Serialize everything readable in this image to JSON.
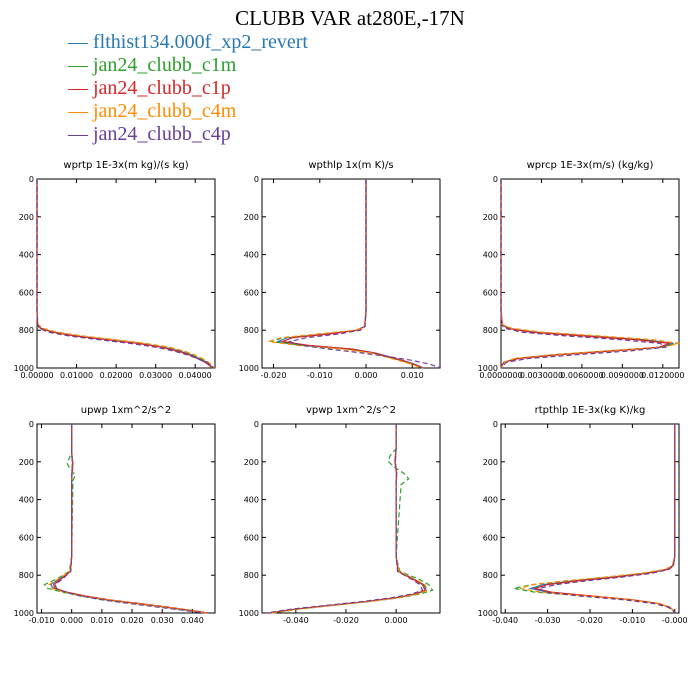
{
  "title": "CLUBB VAR at280E,-17N",
  "legend": [
    {
      "label": "flthist134.000f_xp2_revert",
      "color": "#2878b4"
    },
    {
      "label": "jan24_clubb_c1m",
      "color": "#2ca02c"
    },
    {
      "label": "jan24_clubb_c1p",
      "color": "#d62728"
    },
    {
      "label": "jan24_clubb_c4m",
      "color": "#ff8c00"
    },
    {
      "label": "jan24_clubb_c4p",
      "color": "#6a3d9a"
    }
  ],
  "chart_data": [
    {
      "type": "line",
      "title": "wprtp  1E-3x(m kg)/(s kg)",
      "ylim": [
        1000,
        0
      ],
      "xlim": [
        0,
        0.045
      ],
      "yticks": [
        "0",
        "200",
        "400",
        "600",
        "800",
        "1000"
      ],
      "xticks": [
        {
          "value": 0,
          "label": "0.00000"
        },
        {
          "value": 0.01,
          "label": "0.01000"
        },
        {
          "value": 0.02,
          "label": "0.02000"
        },
        {
          "value": 0.03,
          "label": "0.03000"
        },
        {
          "value": 0.04,
          "label": "0.04000"
        }
      ],
      "y": [
        0,
        700,
        770,
        790,
        810,
        830,
        850,
        870,
        890,
        910,
        930,
        950,
        970,
        990,
        1000
      ],
      "series": [
        {
          "values": [
            0,
            0,
            0.0002,
            0.001,
            0.004,
            0.01,
            0.018,
            0.026,
            0.032,
            0.036,
            0.039,
            0.041,
            0.043,
            0.044,
            0.0445
          ]
        },
        {
          "values": [
            0,
            0,
            0.0002,
            0.0012,
            0.0045,
            0.011,
            0.019,
            0.027,
            0.033,
            0.037,
            0.0395,
            0.0415,
            0.0432,
            0.0443,
            0.0448
          ]
        },
        {
          "values": [
            0,
            0,
            0.0001,
            0.0009,
            0.0038,
            0.0095,
            0.0175,
            0.0255,
            0.0315,
            0.0355,
            0.0385,
            0.0405,
            0.0425,
            0.0438,
            0.0443
          ]
        },
        {
          "values": [
            0,
            0,
            0.0003,
            0.0015,
            0.005,
            0.0115,
            0.0195,
            0.0275,
            0.0335,
            0.0372,
            0.0398,
            0.0418,
            0.0434,
            0.0445,
            0.0449
          ]
        },
        {
          "values": [
            0,
            0,
            0.0001,
            0.0006,
            0.0028,
            0.008,
            0.0155,
            0.0235,
            0.03,
            0.0345,
            0.038,
            0.0405,
            0.0428,
            0.0442,
            0.0446
          ]
        }
      ]
    },
    {
      "type": "line",
      "title": "wpthlp  1x(m K)/s",
      "ylim": [
        1000,
        0
      ],
      "xlim": [
        -0.0225,
        0.016
      ],
      "yticks": [
        "0",
        "200",
        "400",
        "600",
        "800",
        "1000"
      ],
      "xticks": [
        {
          "value": -0.02,
          "label": "-0.020"
        },
        {
          "value": -0.01,
          "label": "-0.010"
        },
        {
          "value": 0,
          "label": "0.000"
        },
        {
          "value": 0.01,
          "label": "0.010"
        }
      ],
      "y": [
        0,
        700,
        780,
        800,
        820,
        840,
        860,
        880,
        900,
        920,
        940,
        960,
        980,
        1000
      ],
      "series": [
        {
          "values": [
            0,
            0,
            -0.0003,
            -0.002,
            -0.009,
            -0.017,
            -0.019,
            -0.013,
            -0.003,
            0.002,
            0.005,
            0.008,
            0.0105,
            0.0125
          ]
        },
        {
          "values": [
            0,
            0,
            -0.0003,
            -0.002,
            -0.01,
            -0.018,
            -0.0205,
            -0.014,
            -0.004,
            0.0015,
            0.0045,
            0.0075,
            0.0102,
            0.0122
          ]
        },
        {
          "values": [
            0,
            0,
            -0.0003,
            -0.0018,
            -0.008,
            -0.016,
            -0.018,
            -0.0125,
            -0.003,
            0.0018,
            0.0048,
            0.0078,
            0.0103,
            0.0123
          ]
        },
        {
          "values": [
            0,
            0,
            -0.0003,
            -0.0022,
            -0.0105,
            -0.0185,
            -0.021,
            -0.015,
            -0.005,
            0.001,
            0.004,
            0.007,
            0.0098,
            0.012
          ]
        },
        {
          "values": [
            0,
            0,
            -0.0002,
            -0.0012,
            -0.006,
            -0.013,
            -0.0165,
            -0.014,
            -0.008,
            -0.001,
            0.005,
            0.01,
            0.0138,
            0.0162
          ]
        }
      ]
    },
    {
      "type": "line",
      "title": "wprcp  1E-3x(m/s) (kg/kg)",
      "ylim": [
        1000,
        0
      ],
      "xlim": [
        0,
        0.0132
      ],
      "yticks": [
        "0",
        "200",
        "400",
        "600",
        "800",
        "1000"
      ],
      "xticks": [
        {
          "value": 0,
          "label": "0.0000000"
        },
        {
          "value": 0.003,
          "label": "0.0030000"
        },
        {
          "value": 0.006,
          "label": "0.0060000"
        },
        {
          "value": 0.009,
          "label": "0.0090000"
        },
        {
          "value": 0.012,
          "label": "0.0120000"
        }
      ],
      "y": [
        0,
        700,
        770,
        790,
        810,
        830,
        850,
        870,
        890,
        910,
        930,
        950,
        970,
        1000
      ],
      "series": [
        {
          "values": [
            0,
            0,
            0.0001,
            0.0006,
            0.0025,
            0.0065,
            0.0105,
            0.0128,
            0.0118,
            0.008,
            0.004,
            0.0012,
            0.0002,
            0
          ]
        },
        {
          "values": [
            0,
            0,
            0.0001,
            0.0007,
            0.0028,
            0.007,
            0.011,
            0.0131,
            0.0119,
            0.0078,
            0.0038,
            0.0011,
            0.0002,
            0
          ]
        },
        {
          "values": [
            0,
            0,
            0.0001,
            0.0005,
            0.0022,
            0.006,
            0.01,
            0.0125,
            0.0117,
            0.0082,
            0.0042,
            0.0013,
            0.0002,
            0
          ]
        },
        {
          "values": [
            0,
            0,
            0.0001,
            0.0008,
            0.003,
            0.0073,
            0.0112,
            0.0132,
            0.012,
            0.0077,
            0.0037,
            0.001,
            0.0002,
            0
          ]
        },
        {
          "values": [
            0,
            0,
            0,
            0.0003,
            0.0015,
            0.0048,
            0.0088,
            0.0118,
            0.0122,
            0.0095,
            0.0055,
            0.002,
            0.0004,
            0
          ]
        }
      ]
    },
    {
      "type": "line",
      "title": "upwp  1xm^2/s^2",
      "ylim": [
        1000,
        0
      ],
      "xlim": [
        -0.0115,
        0.0475
      ],
      "yticks": [
        "0",
        "200",
        "400",
        "600",
        "800",
        "1000"
      ],
      "xticks": [
        {
          "value": -0.01,
          "label": "-0.010"
        },
        {
          "value": 0,
          "label": "0.000"
        },
        {
          "value": 0.01,
          "label": "0.010"
        },
        {
          "value": 0.02,
          "label": "0.020"
        },
        {
          "value": 0.03,
          "label": "0.030"
        },
        {
          "value": 0.04,
          "label": "0.040"
        }
      ],
      "y": [
        0,
        150,
        180,
        210,
        240,
        270,
        300,
        700,
        780,
        820,
        850,
        870,
        890,
        910,
        930,
        950,
        970,
        990,
        1000
      ],
      "series": [
        {
          "values": [
            0,
            0,
            0.0002,
            0.0004,
            0.0003,
            0.0001,
            0,
            0,
            -0.0005,
            -0.004,
            -0.007,
            -0.006,
            -0.002,
            0.004,
            0.012,
            0.022,
            0.032,
            0.041,
            0.045
          ]
        },
        {
          "values": [
            0,
            0,
            -0.0008,
            -0.0015,
            -0.0004,
            0.0012,
            0.0004,
            0,
            -0.0008,
            -0.005,
            -0.009,
            -0.008,
            -0.003,
            0.003,
            0.011,
            0.021,
            0.031,
            0.04,
            0.0445
          ]
        },
        {
          "values": [
            0,
            0,
            0.0001,
            0.0003,
            0.0002,
            0.0001,
            0,
            0,
            -0.0004,
            -0.0035,
            -0.006,
            -0.0055,
            -0.0015,
            0.0045,
            0.0125,
            0.0225,
            0.0325,
            0.0412,
            0.0452
          ]
        },
        {
          "values": [
            0,
            0,
            0.0002,
            0.0005,
            0.0003,
            0.0001,
            0,
            0,
            -0.0006,
            -0.0045,
            -0.0075,
            -0.0065,
            -0.0025,
            0.0035,
            0.0115,
            0.0215,
            0.0315,
            0.0405,
            0.0448
          ]
        },
        {
          "values": [
            0,
            0,
            0.0001,
            0.0002,
            0.0001,
            0,
            0,
            0,
            -0.0003,
            -0.003,
            -0.0055,
            -0.005,
            -0.002,
            0.003,
            0.01,
            0.019,
            0.029,
            0.039,
            0.044
          ]
        }
      ]
    },
    {
      "type": "line",
      "title": "vpwp  1xm^2/s^2",
      "ylim": [
        1000,
        0
      ],
      "xlim": [
        -0.0535,
        0.0175
      ],
      "yticks": [
        "0",
        "200",
        "400",
        "600",
        "800",
        "1000"
      ],
      "xticks": [
        {
          "value": -0.04,
          "label": "-0.040"
        },
        {
          "value": -0.02,
          "label": "-0.020"
        },
        {
          "value": 0,
          "label": "0.000"
        }
      ],
      "y": [
        0,
        130,
        170,
        200,
        230,
        260,
        290,
        320,
        700,
        780,
        820,
        850,
        880,
        900,
        920,
        940,
        960,
        980,
        1000
      ],
      "series": [
        {
          "values": [
            0,
            0,
            -0.0003,
            -0.0005,
            -0.0002,
            0.0002,
            0.0001,
            0,
            0,
            0.001,
            0.007,
            0.011,
            0.012,
            0.008,
            0,
            -0.012,
            -0.026,
            -0.04,
            -0.05
          ]
        },
        {
          "values": [
            0,
            0,
            -0.0025,
            -0.003,
            -0.0005,
            0.003,
            0.005,
            0.002,
            0,
            0.0015,
            0.009,
            0.013,
            0.0145,
            0.0095,
            0.001,
            -0.011,
            -0.025,
            -0.039,
            -0.049
          ]
        },
        {
          "values": [
            0,
            0,
            -0.0002,
            -0.0004,
            -0.0001,
            0.0002,
            0.0001,
            0,
            0,
            0.0008,
            0.0065,
            0.0105,
            0.0115,
            0.0075,
            -0.0005,
            -0.0125,
            -0.0265,
            -0.0405,
            -0.0505
          ]
        },
        {
          "values": [
            0,
            0,
            -0.0004,
            -0.0006,
            -0.0002,
            0.0003,
            0.0002,
            0,
            0,
            0.0012,
            0.0075,
            0.0115,
            0.0125,
            0.0085,
            0.0005,
            -0.0115,
            -0.0255,
            -0.0395,
            -0.0495
          ]
        },
        {
          "values": [
            0,
            0,
            -0.0002,
            -0.0003,
            -0.0001,
            0.0001,
            0,
            0,
            0,
            0.0006,
            0.006,
            0.0095,
            0.0105,
            0.006,
            -0.002,
            -0.014,
            -0.028,
            -0.042,
            -0.052
          ]
        }
      ]
    },
    {
      "type": "line",
      "title": "rtpthlp  1E-3x(kg K)/kg",
      "ylim": [
        1000,
        0
      ],
      "xlim": [
        -0.041,
        0.001
      ],
      "yticks": [
        "0",
        "200",
        "400",
        "600",
        "800",
        "1000"
      ],
      "xticks": [
        {
          "value": -0.04,
          "label": "-0.040"
        },
        {
          "value": -0.03,
          "label": "-0.030"
        },
        {
          "value": -0.02,
          "label": "-0.020"
        },
        {
          "value": -0.01,
          "label": "-0.010"
        },
        {
          "value": 0,
          "label": "-0.000"
        }
      ],
      "y": [
        0,
        700,
        750,
        770,
        790,
        810,
        830,
        850,
        870,
        890,
        910,
        930,
        950,
        970,
        990,
        1000
      ],
      "series": [
        {
          "values": [
            0,
            0,
            -0.0005,
            -0.002,
            -0.007,
            -0.015,
            -0.024,
            -0.031,
            -0.034,
            -0.03,
            -0.02,
            -0.01,
            -0.004,
            -0.0012,
            -0.0002,
            0
          ]
        },
        {
          "values": [
            0,
            0,
            -0.0005,
            -0.0022,
            -0.0075,
            -0.016,
            -0.0255,
            -0.0335,
            -0.038,
            -0.033,
            -0.021,
            -0.0105,
            -0.0042,
            -0.0013,
            -0.0002,
            0
          ]
        },
        {
          "values": [
            0,
            0,
            -0.0004,
            -0.0018,
            -0.0065,
            -0.014,
            -0.023,
            -0.03,
            -0.033,
            -0.029,
            -0.0195,
            -0.0098,
            -0.0038,
            -0.0011,
            -0.0002,
            0
          ]
        },
        {
          "values": [
            0,
            0,
            -0.0006,
            -0.0024,
            -0.008,
            -0.0165,
            -0.026,
            -0.0335,
            -0.0365,
            -0.0315,
            -0.0205,
            -0.0102,
            -0.004,
            -0.0012,
            -0.0002,
            0
          ]
        },
        {
          "values": [
            0,
            0,
            -0.0003,
            -0.0014,
            -0.0055,
            -0.0125,
            -0.021,
            -0.028,
            -0.032,
            -0.0305,
            -0.0225,
            -0.012,
            -0.005,
            -0.0015,
            -0.0003,
            0
          ]
        }
      ]
    }
  ]
}
